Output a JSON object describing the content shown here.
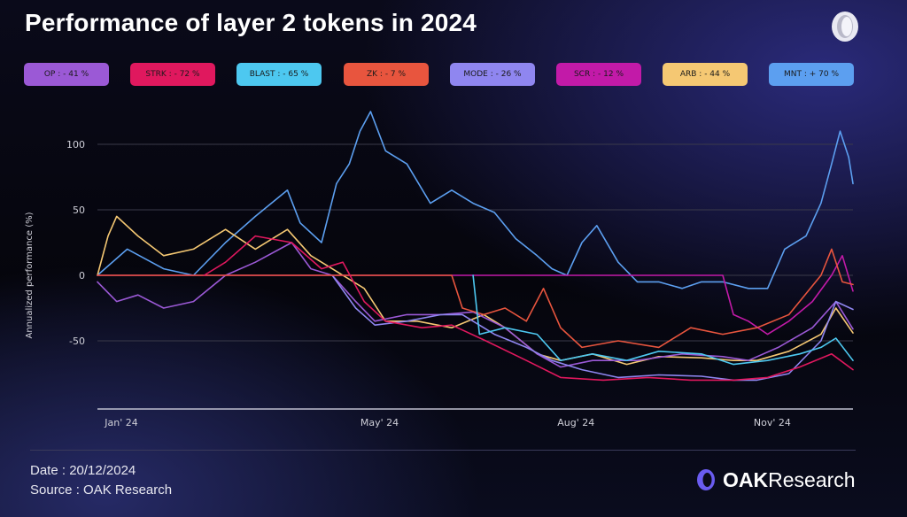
{
  "title": "Performance of layer 2 tokens in 2024",
  "legend": [
    {
      "name": "OP",
      "sep": ":",
      "value": "- 41 %",
      "color": "#9b59d6"
    },
    {
      "name": "STRK",
      "sep": ":",
      "value": "- 72 %",
      "color": "#e0185e"
    },
    {
      "name": "BLAST",
      "sep": ":",
      "value": "- 65 %",
      "color": "#4dc8f0"
    },
    {
      "name": "ZK",
      "sep": ":",
      "value": "- 7 %",
      "color": "#e8553e"
    },
    {
      "name": "MODE",
      "sep": ":",
      "value": "- 26 %",
      "color": "#8f86f0"
    },
    {
      "name": "SCR",
      "sep": ":",
      "value": "- 12 %",
      "color": "#c21aa8"
    },
    {
      "name": "ARB",
      "sep": ":",
      "value": "- 44 %",
      "color": "#f5c873"
    },
    {
      "name": "MNT",
      "sep": ":",
      "value": "+ 70 %",
      "color": "#5c9ff0"
    }
  ],
  "chart_data": {
    "type": "line",
    "title": "Performance of layer 2 tokens in 2024",
    "xlabel": "",
    "ylabel": "Annualized performance (%)",
    "xlim": [
      "2024-01-01",
      "2024-12-20"
    ],
    "ylim": [
      -100,
      130
    ],
    "yticks": [
      100,
      50,
      0,
      -50
    ],
    "xticks": [
      {
        "label": "Jan' 24",
        "date": "2024-01-01"
      },
      {
        "label": "May' 24",
        "date": "2024-05-01"
      },
      {
        "label": "Aug' 24",
        "date": "2024-08-01"
      },
      {
        "label": "Nov' 24",
        "date": "2024-11-01"
      }
    ],
    "grid": true,
    "legend_position": "top",
    "series": [
      {
        "name": "MNT",
        "color": "#5c9ff0",
        "points": [
          [
            "2024-01-01",
            0
          ],
          [
            "2024-01-15",
            20
          ],
          [
            "2024-02-01",
            5
          ],
          [
            "2024-02-15",
            0
          ],
          [
            "2024-03-01",
            25
          ],
          [
            "2024-03-15",
            45
          ],
          [
            "2024-03-30",
            65
          ],
          [
            "2024-04-05",
            40
          ],
          [
            "2024-04-15",
            25
          ],
          [
            "2024-04-22",
            70
          ],
          [
            "2024-04-28",
            85
          ],
          [
            "2024-05-03",
            110
          ],
          [
            "2024-05-08",
            125
          ],
          [
            "2024-05-15",
            95
          ],
          [
            "2024-05-25",
            85
          ],
          [
            "2024-06-05",
            55
          ],
          [
            "2024-06-15",
            65
          ],
          [
            "2024-06-25",
            55
          ],
          [
            "2024-07-05",
            48
          ],
          [
            "2024-07-15",
            28
          ],
          [
            "2024-07-25",
            15
          ],
          [
            "2024-08-01",
            5
          ],
          [
            "2024-08-08",
            0
          ],
          [
            "2024-08-15",
            25
          ],
          [
            "2024-08-22",
            38
          ],
          [
            "2024-09-01",
            10
          ],
          [
            "2024-09-10",
            -5
          ],
          [
            "2024-09-20",
            -5
          ],
          [
            "2024-10-01",
            -10
          ],
          [
            "2024-10-10",
            -5
          ],
          [
            "2024-10-20",
            -5
          ],
          [
            "2024-11-01",
            -10
          ],
          [
            "2024-11-10",
            -10
          ],
          [
            "2024-11-18",
            20
          ],
          [
            "2024-11-28",
            30
          ],
          [
            "2024-12-05",
            55
          ],
          [
            "2024-12-10",
            85
          ],
          [
            "2024-12-14",
            110
          ],
          [
            "2024-12-18",
            90
          ],
          [
            "2024-12-20",
            70
          ]
        ]
      },
      {
        "name": "ARB",
        "color": "#f5c873",
        "points": [
          [
            "2024-01-01",
            0
          ],
          [
            "2024-01-06",
            30
          ],
          [
            "2024-01-10",
            45
          ],
          [
            "2024-01-20",
            30
          ],
          [
            "2024-02-01",
            15
          ],
          [
            "2024-02-15",
            20
          ],
          [
            "2024-03-01",
            35
          ],
          [
            "2024-03-15",
            20
          ],
          [
            "2024-03-30",
            35
          ],
          [
            "2024-04-10",
            15
          ],
          [
            "2024-04-25",
            0
          ],
          [
            "2024-05-05",
            -10
          ],
          [
            "2024-05-15",
            -35
          ],
          [
            "2024-05-30",
            -35
          ],
          [
            "2024-06-15",
            -40
          ],
          [
            "2024-06-30",
            -30
          ],
          [
            "2024-07-10",
            -40
          ],
          [
            "2024-07-25",
            -60
          ],
          [
            "2024-08-05",
            -65
          ],
          [
            "2024-08-20",
            -60
          ],
          [
            "2024-09-05",
            -68
          ],
          [
            "2024-09-20",
            -62
          ],
          [
            "2024-10-10",
            -63
          ],
          [
            "2024-10-25",
            -65
          ],
          [
            "2024-11-05",
            -65
          ],
          [
            "2024-11-20",
            -58
          ],
          [
            "2024-12-05",
            -45
          ],
          [
            "2024-12-12",
            -25
          ],
          [
            "2024-12-20",
            -44
          ]
        ]
      },
      {
        "name": "OP",
        "color": "#9b59d6",
        "points": [
          [
            "2024-01-01",
            -5
          ],
          [
            "2024-01-10",
            -20
          ],
          [
            "2024-01-20",
            -15
          ],
          [
            "2024-02-01",
            -25
          ],
          [
            "2024-02-15",
            -20
          ],
          [
            "2024-03-01",
            0
          ],
          [
            "2024-03-15",
            10
          ],
          [
            "2024-04-01",
            25
          ],
          [
            "2024-04-10",
            5
          ],
          [
            "2024-04-20",
            0
          ],
          [
            "2024-05-01",
            -20
          ],
          [
            "2024-05-10",
            -35
          ],
          [
            "2024-05-25",
            -30
          ],
          [
            "2024-06-10",
            -30
          ],
          [
            "2024-06-25",
            -28
          ],
          [
            "2024-07-10",
            -40
          ],
          [
            "2024-07-25",
            -60
          ],
          [
            "2024-08-05",
            -70
          ],
          [
            "2024-08-20",
            -65
          ],
          [
            "2024-09-10",
            -65
          ],
          [
            "2024-10-01",
            -60
          ],
          [
            "2024-10-20",
            -62
          ],
          [
            "2024-11-01",
            -65
          ],
          [
            "2024-11-15",
            -55
          ],
          [
            "2024-12-01",
            -40
          ],
          [
            "2024-12-12",
            -20
          ],
          [
            "2024-12-20",
            -41
          ]
        ]
      },
      {
        "name": "MODE",
        "color": "#8f86f0",
        "points": [
          [
            "2024-04-20",
            0
          ],
          [
            "2024-05-01",
            -25
          ],
          [
            "2024-05-10",
            -38
          ],
          [
            "2024-05-25",
            -35
          ],
          [
            "2024-06-10",
            -30
          ],
          [
            "2024-06-20",
            -30
          ],
          [
            "2024-07-05",
            -45
          ],
          [
            "2024-07-20",
            -55
          ],
          [
            "2024-08-01",
            -65
          ],
          [
            "2024-08-15",
            -72
          ],
          [
            "2024-09-01",
            -78
          ],
          [
            "2024-09-20",
            -76
          ],
          [
            "2024-10-10",
            -77
          ],
          [
            "2024-10-25",
            -80
          ],
          [
            "2024-11-05",
            -80
          ],
          [
            "2024-11-20",
            -75
          ],
          [
            "2024-12-05",
            -50
          ],
          [
            "2024-12-12",
            -20
          ],
          [
            "2024-12-20",
            -26
          ]
        ]
      },
      {
        "name": "SCR",
        "color": "#c21aa8",
        "points": [
          [
            "2024-01-01",
            0
          ],
          [
            "2024-10-20",
            0
          ],
          [
            "2024-10-25",
            -30
          ],
          [
            "2024-11-01",
            -35
          ],
          [
            "2024-11-10",
            -45
          ],
          [
            "2024-11-20",
            -35
          ],
          [
            "2024-12-01",
            -20
          ],
          [
            "2024-12-10",
            0
          ],
          [
            "2024-12-15",
            15
          ],
          [
            "2024-12-20",
            -12
          ]
        ]
      },
      {
        "name": "ZK",
        "color": "#e8553e",
        "points": [
          [
            "2024-01-01",
            0
          ],
          [
            "2024-06-15",
            0
          ],
          [
            "2024-06-20",
            -25
          ],
          [
            "2024-06-30",
            -30
          ],
          [
            "2024-07-10",
            -25
          ],
          [
            "2024-07-20",
            -35
          ],
          [
            "2024-07-28",
            -10
          ],
          [
            "2024-08-05",
            -40
          ],
          [
            "2024-08-15",
            -55
          ],
          [
            "2024-09-01",
            -50
          ],
          [
            "2024-09-20",
            -55
          ],
          [
            "2024-10-05",
            -40
          ],
          [
            "2024-10-20",
            -45
          ],
          [
            "2024-11-05",
            -40
          ],
          [
            "2024-11-20",
            -30
          ],
          [
            "2024-12-05",
            0
          ],
          [
            "2024-12-10",
            20
          ],
          [
            "2024-12-15",
            -5
          ],
          [
            "2024-12-20",
            -7
          ]
        ]
      },
      {
        "name": "BLAST",
        "color": "#4dc8f0",
        "points": [
          [
            "2024-06-25",
            0
          ],
          [
            "2024-06-28",
            -45
          ],
          [
            "2024-07-10",
            -40
          ],
          [
            "2024-07-25",
            -45
          ],
          [
            "2024-08-05",
            -65
          ],
          [
            "2024-08-20",
            -60
          ],
          [
            "2024-09-05",
            -65
          ],
          [
            "2024-09-20",
            -58
          ],
          [
            "2024-10-10",
            -60
          ],
          [
            "2024-10-25",
            -68
          ],
          [
            "2024-11-10",
            -65
          ],
          [
            "2024-11-25",
            -60
          ],
          [
            "2024-12-05",
            -55
          ],
          [
            "2024-12-12",
            -48
          ],
          [
            "2024-12-20",
            -65
          ]
        ]
      },
      {
        "name": "STRK",
        "color": "#e0185e",
        "points": [
          [
            "2024-02-20",
            0
          ],
          [
            "2024-03-01",
            10
          ],
          [
            "2024-03-15",
            30
          ],
          [
            "2024-04-01",
            25
          ],
          [
            "2024-04-15",
            5
          ],
          [
            "2024-04-25",
            10
          ],
          [
            "2024-05-05",
            -20
          ],
          [
            "2024-05-15",
            -35
          ],
          [
            "2024-06-01",
            -40
          ],
          [
            "2024-06-15",
            -38
          ],
          [
            "2024-07-01",
            -50
          ],
          [
            "2024-07-20",
            -65
          ],
          [
            "2024-08-05",
            -78
          ],
          [
            "2024-08-25",
            -80
          ],
          [
            "2024-09-15",
            -78
          ],
          [
            "2024-10-05",
            -80
          ],
          [
            "2024-10-25",
            -80
          ],
          [
            "2024-11-10",
            -78
          ],
          [
            "2024-11-25",
            -70
          ],
          [
            "2024-12-10",
            -60
          ],
          [
            "2024-12-20",
            -72
          ]
        ]
      }
    ]
  },
  "footer": {
    "date_label": "Date",
    "date_sep": ":",
    "date_value": "20/12/2024",
    "source_label": "Source",
    "source_sep": ":",
    "source_value": "OAK Research"
  },
  "brand": {
    "part1": "OAK",
    "part2": "Research"
  }
}
